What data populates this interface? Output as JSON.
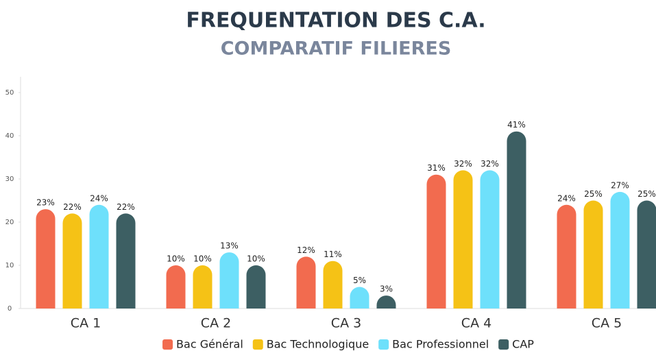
{
  "chart_data": {
    "type": "bar",
    "title": "FREQUENTATION DES C.A.",
    "subtitle": "COMPARATIF FILIERES",
    "categories": [
      "CA 1",
      "CA 2",
      "CA 3",
      "CA 4",
      "CA 5"
    ],
    "series": [
      {
        "name": "Bac Général",
        "color": "#f26b4f",
        "values": [
          23,
          10,
          12,
          31,
          24
        ],
        "value_labels": [
          "23%",
          "10%",
          "12%",
          "31%",
          "24%"
        ]
      },
      {
        "name": "Bac Technologique",
        "color": "#f5c216",
        "values": [
          22,
          10,
          11,
          32,
          25
        ],
        "value_labels": [
          "22%",
          "10%",
          "11%",
          "32%",
          "25%"
        ]
      },
      {
        "name": "Bac Professionnel",
        "color": "#6ee0fb",
        "values": [
          24,
          13,
          5,
          32,
          27
        ],
        "value_labels": [
          "24%",
          "13%",
          "5%",
          "32%",
          "27%"
        ]
      },
      {
        "name": "CAP",
        "color": "#3d5f63",
        "values": [
          22,
          10,
          3,
          41,
          25
        ],
        "value_labels": [
          "22%",
          "10%",
          "3%",
          "41%",
          "25%"
        ]
      }
    ],
    "ylim": [
      0,
      50
    ],
    "yticks": [
      0,
      10,
      20,
      30,
      40,
      50
    ],
    "legend": "bottom"
  }
}
